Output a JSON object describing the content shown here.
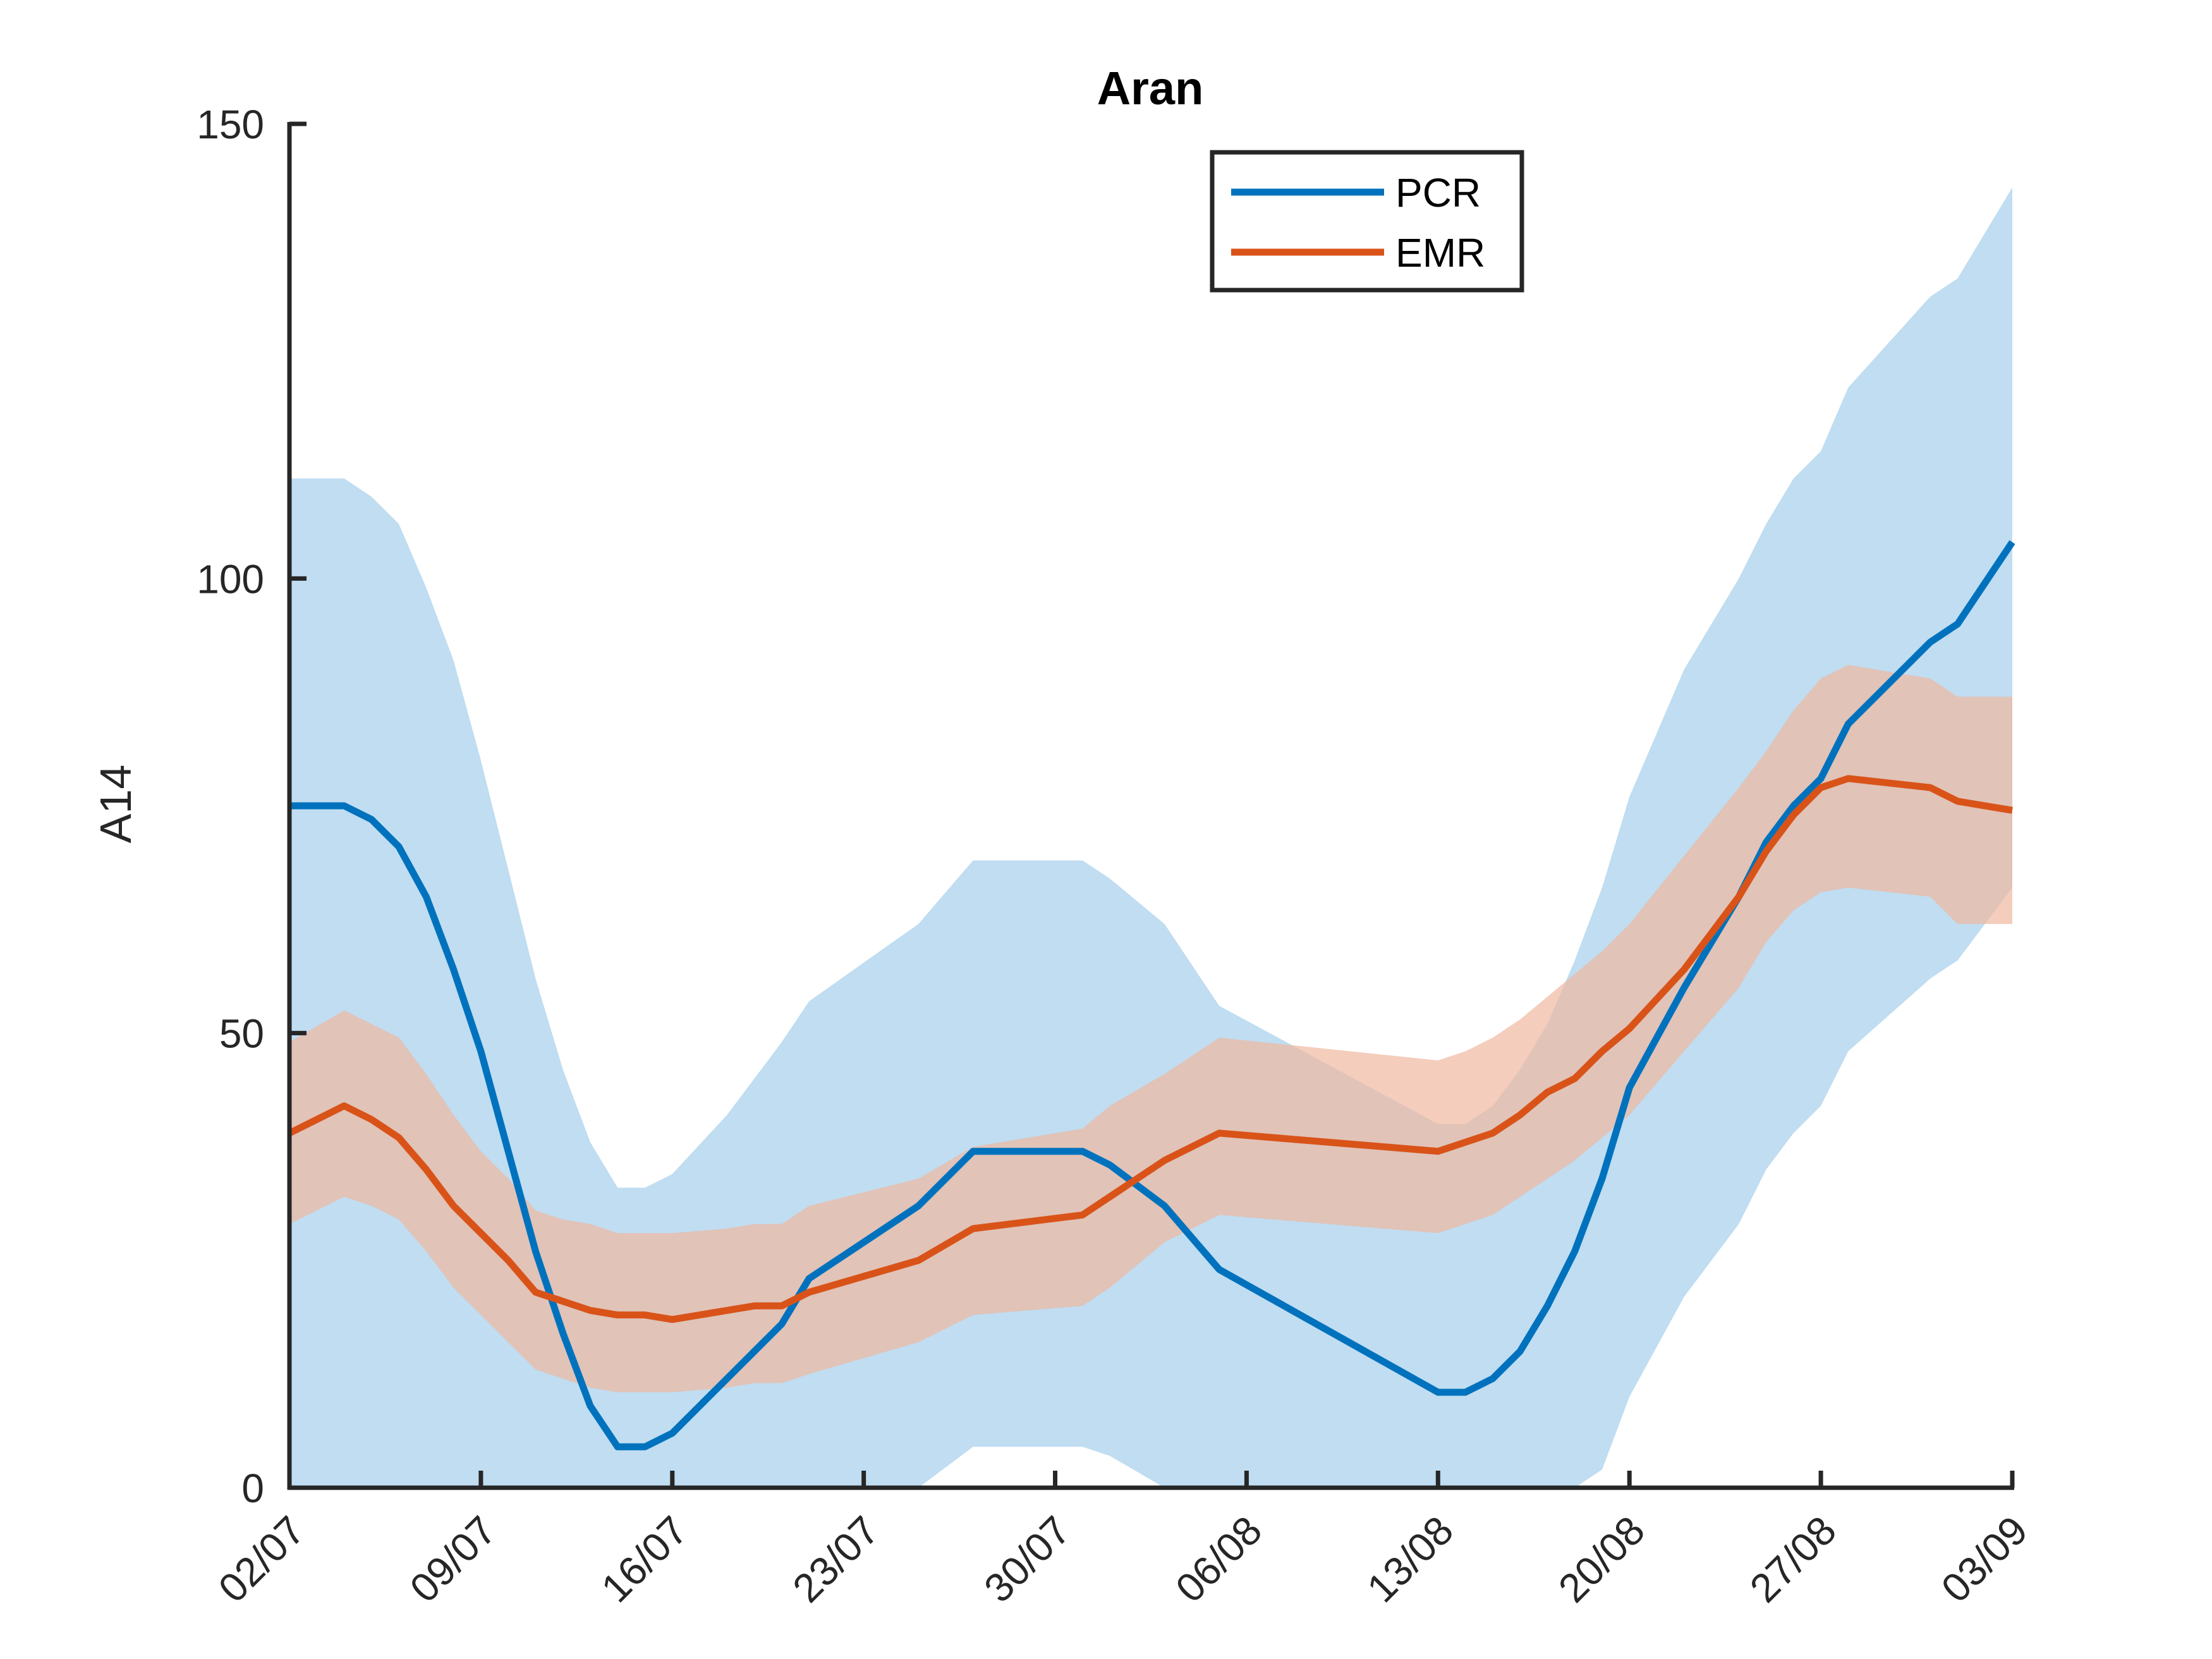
{
  "chart_data": {
    "type": "line",
    "title": "Aran",
    "xlabel": "",
    "ylabel": "A14",
    "ylim": [
      0,
      150
    ],
    "xlim": [
      "2020-07-02",
      "2020-09-03"
    ],
    "x_ticks": [
      "02/07",
      "09/07",
      "16/07",
      "23/07",
      "30/07",
      "06/08",
      "13/08",
      "20/08",
      "27/08",
      "03/09"
    ],
    "y_ticks": [
      0,
      50,
      100,
      150
    ],
    "legend_position": "top-center",
    "grid": false,
    "x": [
      "2020-07-02",
      "2020-07-04",
      "2020-07-05",
      "2020-07-06",
      "2020-07-07",
      "2020-07-08",
      "2020-07-09",
      "2020-07-10",
      "2020-07-11",
      "2020-07-12",
      "2020-07-13",
      "2020-07-14",
      "2020-07-15",
      "2020-07-16",
      "2020-07-18",
      "2020-07-19",
      "2020-07-20",
      "2020-07-21",
      "2020-07-25",
      "2020-07-27",
      "2020-07-31",
      "2020-08-01",
      "2020-08-03",
      "2020-08-05",
      "2020-08-13",
      "2020-08-14",
      "2020-08-15",
      "2020-08-16",
      "2020-08-17",
      "2020-08-18",
      "2020-08-19",
      "2020-08-20",
      "2020-08-22",
      "2020-08-24",
      "2020-08-25",
      "2020-08-26",
      "2020-08-27",
      "2020-08-28",
      "2020-08-31",
      "2020-09-01",
      "2020-09-03"
    ],
    "series": [
      {
        "name": "PCR",
        "color": "#0072BD",
        "values": [
          75,
          75,
          73.5,
          70.5,
          65,
          57,
          48,
          37,
          26,
          17,
          9,
          4.5,
          4.5,
          6,
          12,
          15,
          18,
          23,
          31,
          37,
          37,
          35.5,
          31,
          24,
          10.5,
          10.5,
          12,
          15,
          20,
          26,
          34,
          44,
          55,
          65,
          71,
          75,
          78,
          84,
          93,
          95,
          104
        ],
        "lower": [
          0,
          0,
          0,
          0,
          0,
          0,
          0,
          0,
          0,
          0,
          0,
          0,
          0,
          0,
          0,
          0,
          0,
          0,
          0,
          4.5,
          4.5,
          3.5,
          0,
          0,
          0,
          0,
          0,
          0,
          0,
          0,
          2,
          10,
          21,
          29,
          35,
          39,
          42,
          48,
          56,
          58,
          66
        ],
        "upper": [
          111,
          111,
          109,
          106,
          99,
          91,
          80,
          68,
          56,
          46,
          38,
          33,
          33,
          34.5,
          41,
          45,
          49,
          53.5,
          62,
          69,
          69,
          67,
          62,
          53,
          40,
          40,
          42,
          46,
          51,
          58,
          66,
          76,
          90,
          100,
          106,
          111,
          114,
          121,
          131,
          133,
          143
        ]
      },
      {
        "name": "EMR",
        "color": "#D95319",
        "values": [
          39,
          42,
          40.5,
          38.5,
          35,
          31,
          28,
          25,
          21.5,
          20.5,
          19.5,
          19,
          19,
          18.5,
          19.5,
          20,
          20,
          21.5,
          25,
          28.5,
          30,
          32,
          36,
          39,
          37,
          38,
          39,
          41,
          43.5,
          45,
          48,
          50.5,
          57,
          65,
          70,
          74,
          77,
          78,
          77,
          75.5,
          74.5
        ],
        "lower": [
          29,
          32,
          31,
          29.5,
          26,
          22,
          19,
          16,
          13,
          12,
          11,
          10.5,
          10.5,
          10.5,
          11,
          11.5,
          11.5,
          12.5,
          16,
          19,
          20,
          22,
          27,
          30,
          28,
          29,
          30,
          32,
          34,
          36,
          38.5,
          41,
          48,
          55,
          60,
          63.5,
          65.5,
          66,
          65,
          62,
          62
        ],
        "upper": [
          49,
          52.5,
          51,
          49.5,
          45.5,
          41,
          37,
          34,
          30.5,
          29.5,
          29,
          28,
          28,
          28,
          28.5,
          29,
          29,
          31,
          34,
          37.5,
          39.5,
          42,
          45.5,
          49.5,
          47,
          48,
          49.5,
          51.5,
          54,
          56.5,
          59,
          62,
          69.5,
          77,
          81,
          85.5,
          89,
          90.5,
          89,
          87,
          87
        ]
      }
    ]
  }
}
